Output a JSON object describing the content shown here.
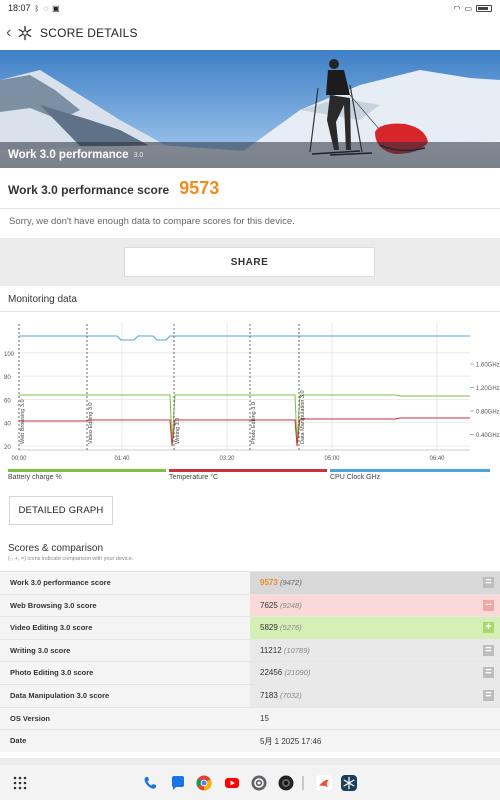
{
  "status": {
    "time": "18:07"
  },
  "app": {
    "title": "SCORE DETAILS"
  },
  "hero": {
    "title": "Work 3.0 performance",
    "version": "3.0"
  },
  "score": {
    "label": "Work 3.0 performance score",
    "value": "9573",
    "message": "Sorry, we don't have enough data to compare scores for this device."
  },
  "share_label": "SHARE",
  "monitoring": {
    "heading": "Monitoring data",
    "detailed_label": "DETAILED GRAPH",
    "legend": [
      {
        "label": "Battery charge %",
        "color": "#7cc242"
      },
      {
        "label": "Temperature °C",
        "color": "#c8323a"
      },
      {
        "label": "CPU Clock GHz",
        "color": "#4aa6e0"
      }
    ]
  },
  "chart_data": {
    "type": "line",
    "x_ticks": [
      "00:00",
      "01:40",
      "03:20",
      "05:00",
      "06:40"
    ],
    "y_left_ticks": [
      "20",
      "40",
      "60",
      "80",
      "100"
    ],
    "y_right_ticks": [
      "0.40GHz",
      "0.80GHz",
      "1.20GHz",
      "1.60GHz"
    ],
    "sections": [
      "Web Browsing 3.0",
      "Video Editing 3.0",
      "Writing 3.0",
      "Photo Editing 3.0",
      "Data Manipulation 3.0"
    ],
    "series": [
      {
        "name": "Battery charge %",
        "color": "#7cc242",
        "x": [
          0,
          460
        ],
        "values": [
          47,
          47
        ]
      },
      {
        "name": "Temperature °C",
        "color": "#c8323a",
        "x": [
          0,
          40,
          300,
          360
        ],
        "values": [
          26,
          26,
          27,
          28
        ]
      },
      {
        "name": "CPU Clock GHz",
        "color": "#4aa6e0",
        "x": [
          0,
          110,
          130,
          200
        ],
        "values": [
          1.85,
          1.85,
          1.82,
          1.85
        ]
      }
    ]
  },
  "scores": {
    "heading": "Scores & comparison",
    "sub": "(-, +, =) icons indicate comparison with your device.",
    "rows": [
      {
        "label": "Work 3.0 performance score",
        "value": "9573",
        "avg": "(9472)",
        "cmp": "=",
        "highlight": true,
        "bg": "#d8d8d8",
        "cmpbg": "#bdbdbd"
      },
      {
        "label": "Web Browsing 3.0 score",
        "value": "7625",
        "avg": "(9248)",
        "cmp": "−",
        "highlight": false,
        "bg": "#fbd9d9",
        "cmpbg": "#f3a6a6"
      },
      {
        "label": "Video Editing 3.0 score",
        "value": "5829",
        "avg": "(5276)",
        "cmp": "+",
        "highlight": false,
        "bg": "#d6efb6",
        "cmpbg": "#a9d96a"
      },
      {
        "label": "Writing 3.0 score",
        "value": "11212",
        "avg": "(10789)",
        "cmp": "=",
        "highlight": false,
        "bg": "#e9e9e9",
        "cmpbg": "#bdbdbd"
      },
      {
        "label": "Photo Editing 3.0 score",
        "value": "22456",
        "avg": "(21090)",
        "cmp": "=",
        "highlight": false,
        "bg": "#e9e9e9",
        "cmpbg": "#bdbdbd"
      },
      {
        "label": "Data Manipulation 3.0 score",
        "value": "7183",
        "avg": "(7032)",
        "cmp": "=",
        "highlight": false,
        "bg": "#e9e9e9",
        "cmpbg": "#bdbdbd"
      },
      {
        "label": "OS Version",
        "value": "15",
        "avg": "",
        "cmp": "",
        "highlight": false,
        "bg": "#f5f5f5",
        "cmpbg": ""
      },
      {
        "label": "Date",
        "value": "5月 1 2025 17:46",
        "avg": "",
        "cmp": "",
        "highlight": false,
        "bg": "#f5f5f5",
        "cmpbg": ""
      }
    ]
  },
  "navbar": {
    "icons": [
      "apps-icon",
      "phone-icon",
      "messages-icon",
      "chrome-icon",
      "youtube-icon",
      "camera-icon",
      "camera2-icon",
      "app-icon",
      "3dmark-icon"
    ]
  }
}
